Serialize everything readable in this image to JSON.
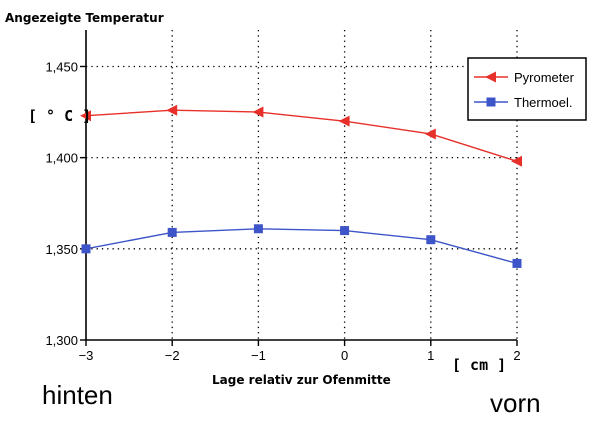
{
  "chart_data": {
    "type": "line",
    "title": "Angezeigte Temperatur",
    "y_unit": "[ ° C ]",
    "xlabel": "Lage relativ zur Ofenmitte",
    "x_unit": "[ cm ]",
    "left_label": "hinten",
    "right_label": "vorn",
    "x": [
      -3,
      -2,
      -1,
      0,
      1,
      2
    ],
    "x_ticks": [
      "−3",
      "−2",
      "−1",
      "0",
      "1",
      "2"
    ],
    "y_ticks": [
      "1,300",
      "1,350",
      "1,400",
      "1,450"
    ],
    "y_tick_values": [
      1300,
      1350,
      1400,
      1450
    ],
    "xlim": [
      -3,
      2
    ],
    "ylim": [
      1300,
      1470
    ],
    "grid": true,
    "legend_position": "top-right",
    "series": [
      {
        "name": "Pyrometer",
        "color": "#e8302a",
        "marker": "triangle-left",
        "values": [
          1423,
          1426,
          1425,
          1420,
          1413,
          1398
        ]
      },
      {
        "name": "Thermoel.",
        "color": "#3d55c8",
        "marker": "square",
        "values": [
          1350,
          1359,
          1361,
          1360,
          1355,
          1342
        ]
      }
    ]
  }
}
